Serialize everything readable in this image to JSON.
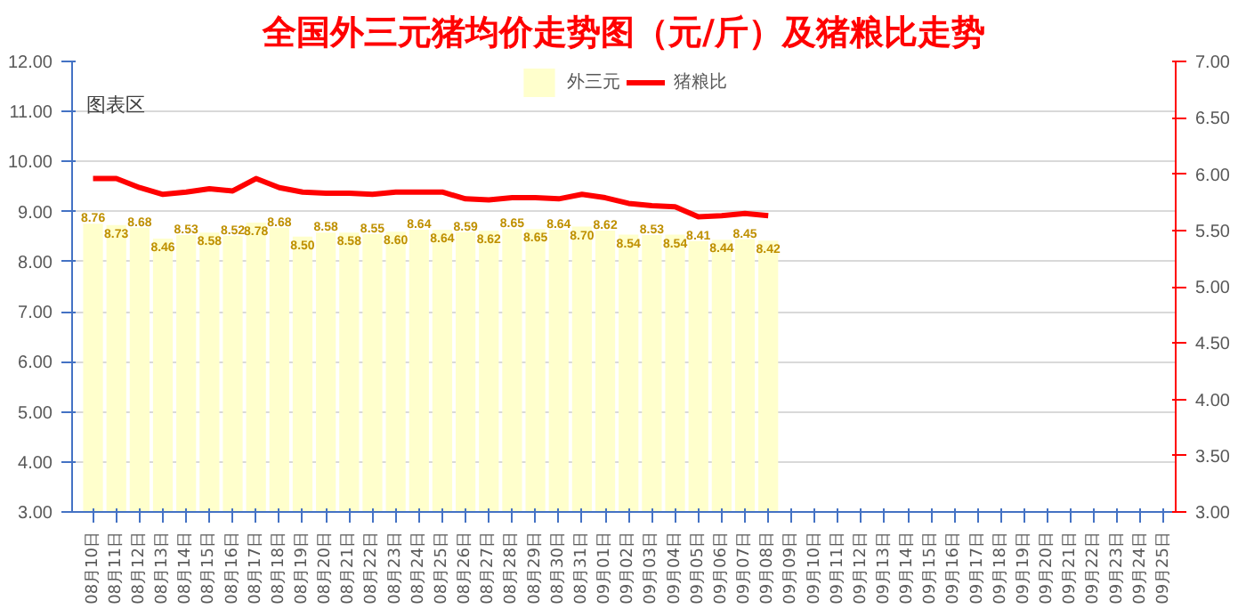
{
  "chart_data": {
    "type": "bar",
    "title": "全国外三元猪均价走势图（元/斤）及猪粮比走势",
    "categories": [
      "08月10日",
      "08月11日",
      "08月12日",
      "08月13日",
      "08月14日",
      "08月15日",
      "08月16日",
      "08月17日",
      "08月18日",
      "08月19日",
      "08月20日",
      "08月21日",
      "08月22日",
      "08月23日",
      "08月24日",
      "08月25日",
      "08月26日",
      "08月27日",
      "08月28日",
      "08月29日",
      "08月30日",
      "08月31日",
      "09月01日",
      "09月02日",
      "09月03日",
      "09月04日",
      "09月05日",
      "09月06日",
      "09月07日",
      "09月08日",
      "09月09日",
      "09月10日",
      "09月11日",
      "09月12日",
      "09月13日",
      "09月14日",
      "09月15日",
      "09月16日",
      "09月17日",
      "09月18日",
      "09月19日",
      "09月20日",
      "09月21日",
      "09月22日",
      "09月23日",
      "09月24日",
      "09月25日"
    ],
    "series": [
      {
        "name": "外三元",
        "color": "#ffffcc",
        "values": [
          8.76,
          8.73,
          8.68,
          8.46,
          8.53,
          8.58,
          8.52,
          8.78,
          8.68,
          8.5,
          8.58,
          8.58,
          8.55,
          8.6,
          8.64,
          8.64,
          8.59,
          8.62,
          8.65,
          8.65,
          8.64,
          8.7,
          8.62,
          8.54,
          8.53,
          8.54,
          8.41,
          8.44,
          8.45,
          8.42,
          null,
          null,
          null,
          null,
          null,
          null,
          null,
          null,
          null,
          null,
          null,
          null,
          null,
          null,
          null,
          null,
          null
        ],
        "value_labels": [
          "8.76",
          "8.73",
          "8.68",
          "8.46",
          "8.53",
          "8.58",
          "8.52",
          "8.78",
          "8.68",
          "8.50",
          "8.58",
          "8.58",
          "8.55",
          "8.60",
          "8.64",
          "8.64",
          "8.59",
          "8.62",
          "8.65",
          "8.65",
          "8.64",
          "8.70",
          "8.62",
          "8.54",
          "8.53",
          "8.54",
          "8.41",
          "8.44",
          "8.45",
          "8.42",
          null,
          null,
          null,
          null,
          null,
          null,
          null,
          null,
          null,
          null,
          null,
          null,
          null,
          null,
          null,
          null,
          null
        ]
      },
      {
        "name": "猪粮比",
        "type": "line",
        "axis": "y2",
        "color": "#ff0000",
        "values": [
          5.96,
          5.96,
          5.88,
          5.82,
          5.84,
          5.87,
          5.85,
          5.96,
          5.88,
          5.84,
          5.83,
          5.83,
          5.82,
          5.84,
          5.84,
          5.84,
          5.78,
          5.77,
          5.79,
          5.79,
          5.78,
          5.82,
          5.79,
          5.74,
          5.72,
          5.71,
          5.62,
          5.63,
          5.65,
          5.63,
          null,
          null,
          null,
          null,
          null,
          null,
          null,
          null,
          null,
          null,
          null,
          null,
          null,
          null,
          null,
          null,
          null
        ]
      }
    ],
    "ylim": [
      3,
      12
    ],
    "yticks": [
      {
        "value": 3,
        "label": "3.00"
      },
      {
        "value": 4,
        "label": "4.00"
      },
      {
        "value": 5,
        "label": "5.00"
      },
      {
        "value": 6,
        "label": "6.00"
      },
      {
        "value": 7,
        "label": "7.00"
      },
      {
        "value": 8,
        "label": "8.00"
      },
      {
        "value": 9,
        "label": "9.00"
      },
      {
        "value": 10,
        "label": "10.00"
      },
      {
        "value": 11,
        "label": "11.00"
      },
      {
        "value": 12,
        "label": "12.00"
      }
    ],
    "y2lim": [
      3,
      7
    ],
    "y2ticks": [
      {
        "value": 3,
        "label": "3.00"
      },
      {
        "value": 3.5,
        "label": "3.50"
      },
      {
        "value": 4,
        "label": "4.00"
      },
      {
        "value": 4.5,
        "label": "4.50"
      },
      {
        "value": 5,
        "label": "5.00"
      },
      {
        "value": 5.5,
        "label": "5.50"
      },
      {
        "value": 6,
        "label": "6.00"
      },
      {
        "value": 6.5,
        "label": "6.50"
      },
      {
        "value": 7,
        "label": "7.00"
      }
    ],
    "grid": "y",
    "legend": "top",
    "annotations": [
      "图表区"
    ]
  }
}
